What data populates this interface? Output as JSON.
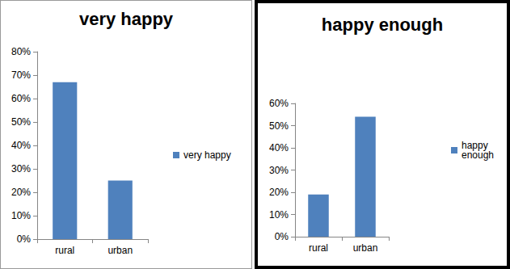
{
  "chart_data": [
    {
      "type": "bar",
      "title": "very happy",
      "categories": [
        "rural",
        "urban"
      ],
      "series": [
        {
          "name": "very happy",
          "color": "#4f81bd",
          "values": [
            67,
            25
          ]
        }
      ],
      "ylim": [
        0,
        80
      ],
      "yticks": [
        {
          "value": 0,
          "label": "0%"
        },
        {
          "value": 10,
          "label": "10%"
        },
        {
          "value": 20,
          "label": "20%"
        },
        {
          "value": 30,
          "label": "30%"
        },
        {
          "value": 40,
          "label": "40%"
        },
        {
          "value": 50,
          "label": "50%"
        },
        {
          "value": 60,
          "label": "60%"
        },
        {
          "value": 70,
          "label": "70%"
        },
        {
          "value": 80,
          "label": "80%"
        }
      ],
      "grid": false,
      "legend": "right"
    },
    {
      "type": "bar",
      "title": "happy enough",
      "categories": [
        "rural",
        "urban"
      ],
      "series": [
        {
          "name": "happy enough",
          "color": "#4f81bd",
          "values": [
            19,
            54
          ]
        }
      ],
      "ylim": [
        0,
        60
      ],
      "yticks": [
        {
          "value": 0,
          "label": "0%"
        },
        {
          "value": 10,
          "label": "10%"
        },
        {
          "value": 20,
          "label": "20%"
        },
        {
          "value": 30,
          "label": "30%"
        },
        {
          "value": 40,
          "label": "40%"
        },
        {
          "value": 50,
          "label": "50%"
        },
        {
          "value": 60,
          "label": "60%"
        }
      ],
      "grid": false,
      "legend": "right"
    }
  ]
}
